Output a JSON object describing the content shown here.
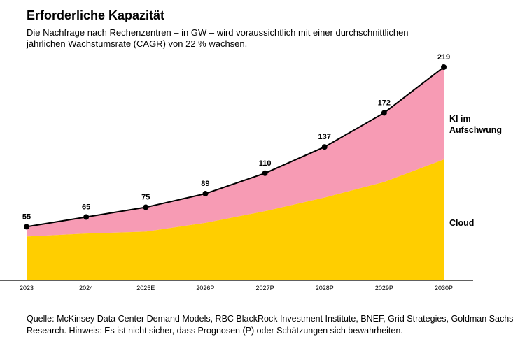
{
  "title": "Erforderliche Kapazität",
  "subtitle": "Die Nachfrage nach Rechenzentren – in GW – wird voraussichtlich mit einer durchschnittlichen jährlichen Wachstumsrate (CAGR) von 22 % wachsen.",
  "source": "Quelle: McKinsey Data Center Demand Models, RBC BlackRock Investment Institute, BNEF, Grid Strategies, Goldman Sachs Research. Hinweis: Es ist nicht sicher, dass Prognosen (P) oder Schätzungen sich bewahrheiten.",
  "chart_data": {
    "type": "area",
    "stacked": true,
    "categories": [
      "2023",
      "2024",
      "2025E",
      "2026P",
      "2027P",
      "2028P",
      "2029P",
      "2030P"
    ],
    "total_labels": [
      "55",
      "65",
      "75",
      "89",
      "110",
      "137",
      "172",
      "219"
    ],
    "total": [
      55,
      65,
      75,
      89,
      110,
      137,
      172,
      219
    ],
    "series": [
      {
        "name": "Cloud",
        "values": [
          45,
          48,
          50,
          59,
          71,
          85,
          101,
          124
        ],
        "color": "#FFCE00"
      },
      {
        "name": "KI im Aufschwung",
        "values": [
          10,
          17,
          25,
          30,
          39,
          52,
          71,
          95
        ],
        "color": "#F79BB4"
      }
    ],
    "ylim": [
      0,
      219
    ],
    "grid": false,
    "legend": "right, inline labels"
  }
}
